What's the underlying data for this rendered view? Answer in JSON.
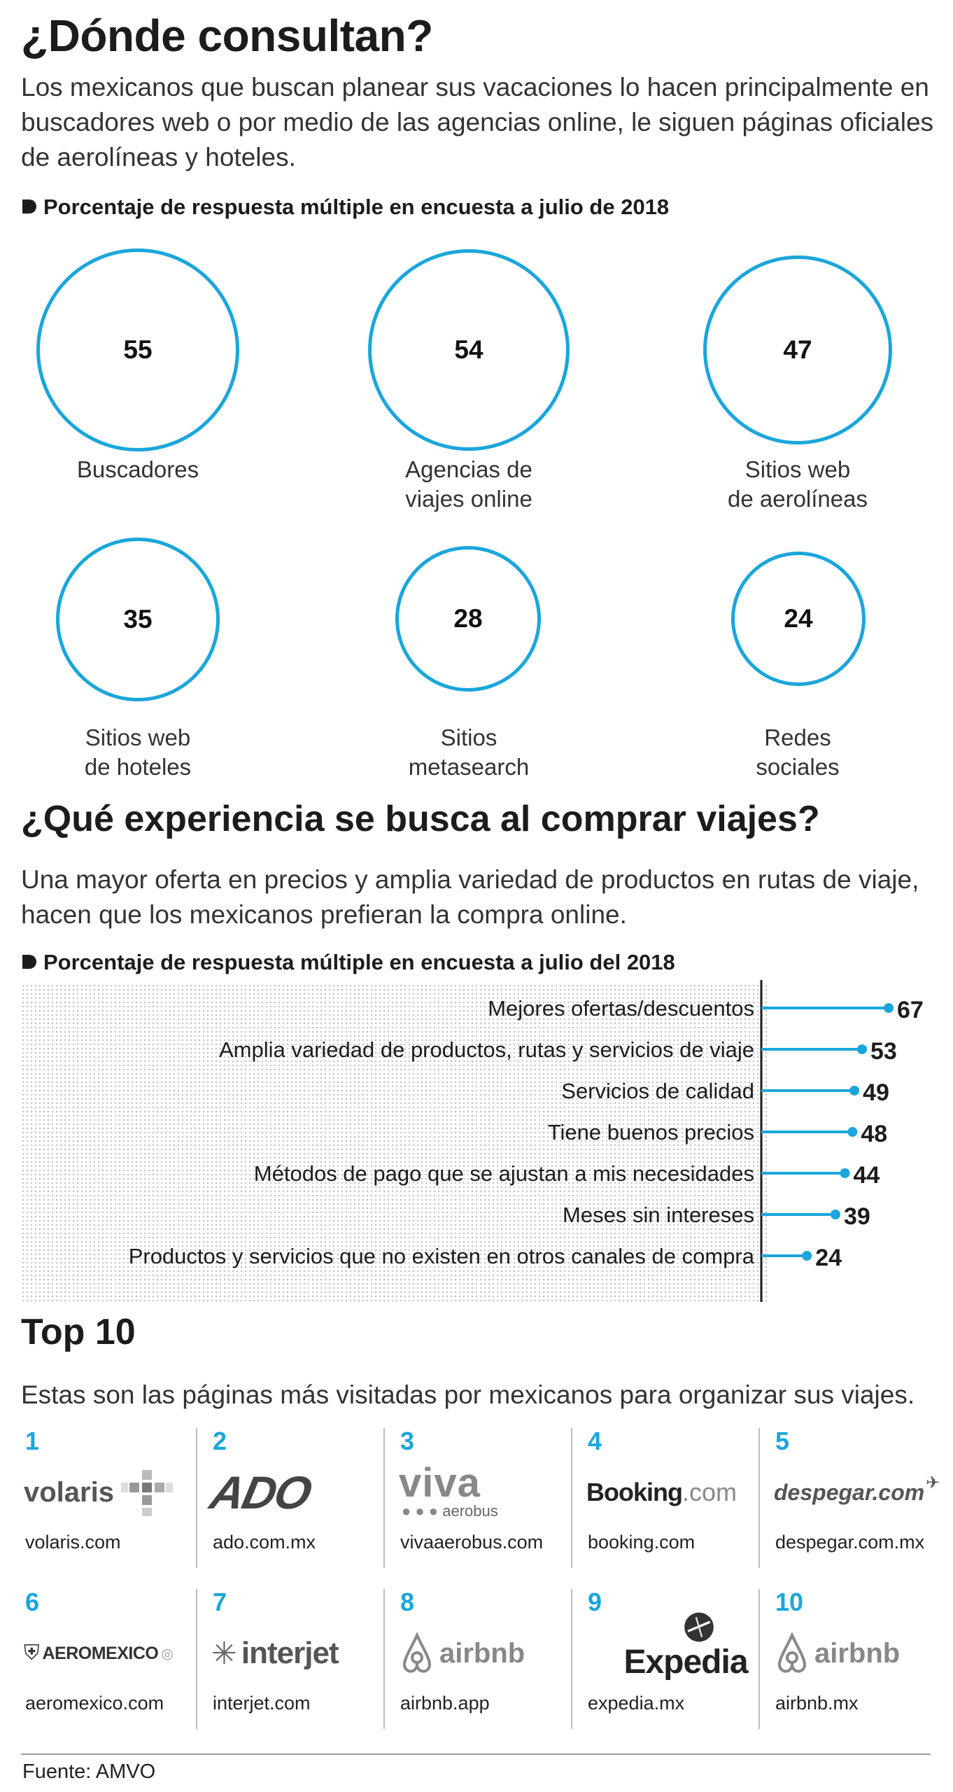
{
  "section1": {
    "title": "¿Dónde consultan?",
    "lead": "Los mexicanos que buscan planear sus vacaciones lo hacen principalmente en buscadores web o por medio de las agencias online, le siguen páginas oficiales de aerolíneas y hoteles.",
    "subtitle": "Porcentaje de respuesta múltiple en encuesta a julio de 2018",
    "circles": [
      {
        "value": "55",
        "label_line1": "Buscadores",
        "label_line2": ""
      },
      {
        "value": "54",
        "label_line1": "Agencias de",
        "label_line2": "viajes online"
      },
      {
        "value": "47",
        "label_line1": "Sitios web",
        "label_line2": "de aerolíneas"
      },
      {
        "value": "35",
        "label_line1": "Sitios web",
        "label_line2": "de hoteles"
      },
      {
        "value": "28",
        "label_line1": "Sitios",
        "label_line2": "metasearch"
      },
      {
        "value": "24",
        "label_line1": "Redes",
        "label_line2": "sociales"
      }
    ]
  },
  "section2": {
    "title": "¿Qué experiencia se busca al comprar viajes?",
    "lead": "Una mayor oferta en precios y amplia variedad de productos en rutas de viaje, hacen que los mexicanos prefieran la compra online.",
    "subtitle": "Porcentaje de respuesta múltiple en encuesta a julio del 2018"
  },
  "chart_data": [
    {
      "type": "bubble",
      "title": "¿Dónde consultan?",
      "categories": [
        "Buscadores",
        "Agencias de viajes online",
        "Sitios web de aerolíneas",
        "Sitios web de hoteles",
        "Sitios metasearch",
        "Redes sociales"
      ],
      "values": [
        55,
        54,
        47,
        35,
        28,
        24
      ],
      "unit": "%"
    },
    {
      "type": "bar",
      "title": "¿Qué experiencia se busca al comprar viajes?",
      "categories": [
        "Mejores ofertas/descuentos",
        "Amplia variedad de productos, rutas y servicios de viaje",
        "Servicios de calidad",
        "Tiene buenos precios",
        "Métodos de pago que se ajustan a mis necesidades",
        "Meses sin intereses",
        "Productos y servicios que no existen en otros canales de compra"
      ],
      "values": [
        67,
        53,
        49,
        48,
        44,
        39,
        24
      ],
      "unit": "%",
      "xlim": [
        0,
        67
      ]
    }
  ],
  "section3": {
    "title": "Top 10",
    "lead": "Estas son las páginas más visitadas por mexicanos para organizar sus viajes.",
    "sites": [
      {
        "rank": "1",
        "logo": "volaris",
        "domain": "volaris.com"
      },
      {
        "rank": "2",
        "logo": "ADO",
        "domain": "ado.com.mx"
      },
      {
        "rank": "3",
        "logo": "viva",
        "logo_sub": "aerobus",
        "domain": "vivaaerobus.com"
      },
      {
        "rank": "4",
        "logo": "Booking",
        "logo_sub": ".com",
        "domain": "booking.com"
      },
      {
        "rank": "5",
        "logo": "despegar.com",
        "domain": "despegar.com.mx"
      },
      {
        "rank": "6",
        "logo": "AEROMEXICO",
        "domain": "aeromexico.com"
      },
      {
        "rank": "7",
        "logo": "interjet",
        "domain": "interjet.com"
      },
      {
        "rank": "8",
        "logo": "airbnb",
        "domain": "airbnb.app"
      },
      {
        "rank": "9",
        "logo": "Expedia",
        "domain": "expedia.mx"
      },
      {
        "rank": "10",
        "logo": "airbnb",
        "domain": "airbnb.mx"
      }
    ]
  },
  "source": "Fuente: AMVO",
  "colors": {
    "accent": "#1aa6dc",
    "text": "#1c1c1c"
  }
}
